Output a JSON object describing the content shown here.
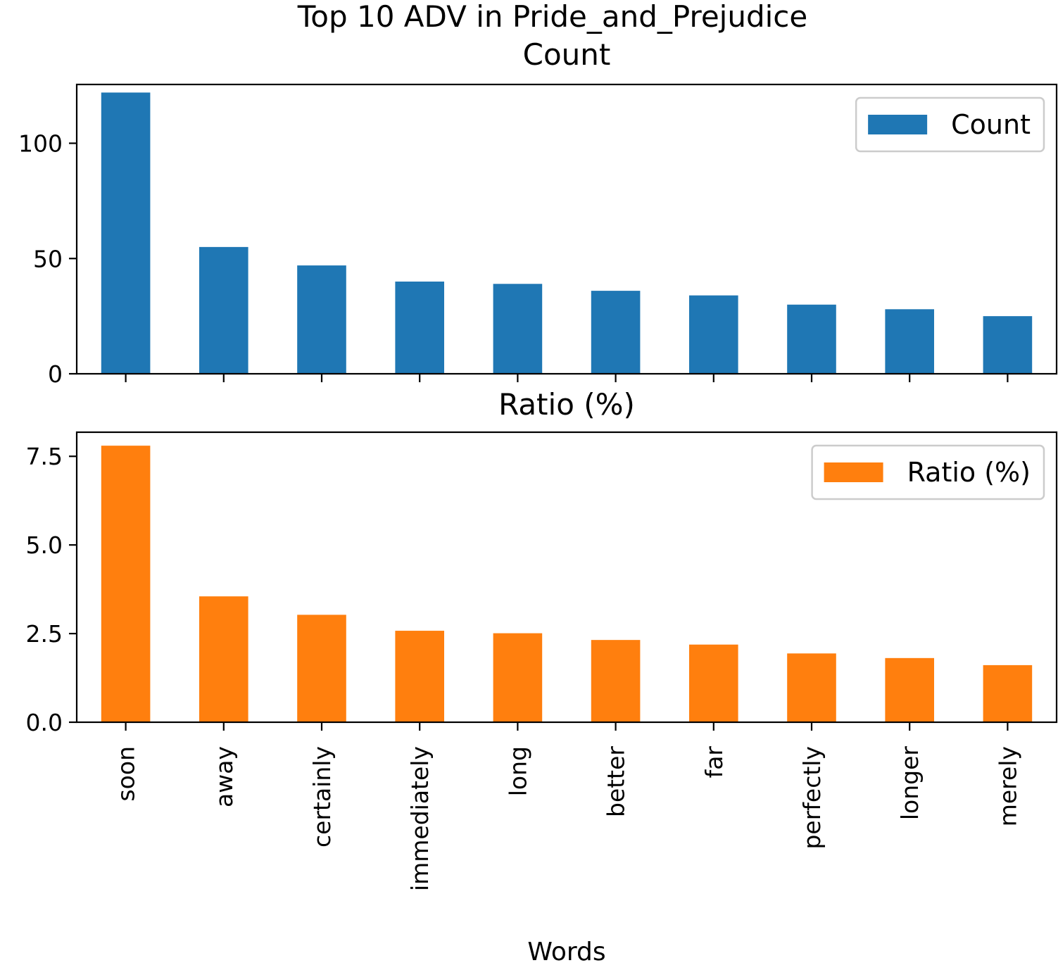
{
  "figure": {
    "suptitle": "Top 10 ADV in Pride_and_Prejudice",
    "xlabel": "Words"
  },
  "colors": {
    "count": "#1f77b4",
    "ratio": "#ff7f0e",
    "legend_border": "#cccccc"
  },
  "chart_data": [
    {
      "type": "bar",
      "title": "Count",
      "categories": [
        "soon",
        "away",
        "certainly",
        "immediately",
        "long",
        "better",
        "far",
        "perfectly",
        "longer",
        "merely"
      ],
      "series": [
        {
          "name": "Count",
          "values": [
            122,
            55,
            47,
            40,
            39,
            36,
            34,
            30,
            28,
            25
          ]
        }
      ],
      "ylim": [
        0,
        125.5
      ],
      "yticks": [
        0,
        50,
        100
      ],
      "ytick_labels": [
        "0",
        "50",
        "100"
      ],
      "xtick_labels_visible": false,
      "legend_position": "top-right",
      "grid": false
    },
    {
      "type": "bar",
      "title": "Ratio (%)",
      "categories": [
        "soon",
        "away",
        "certainly",
        "immediately",
        "long",
        "better",
        "far",
        "perfectly",
        "longer",
        "merely"
      ],
      "series": [
        {
          "name": "Ratio (%)",
          "values": [
            7.8,
            3.55,
            3.03,
            2.58,
            2.51,
            2.32,
            2.19,
            1.94,
            1.81,
            1.61
          ]
        }
      ],
      "ylim": [
        0,
        8.18
      ],
      "yticks": [
        0,
        2.5,
        5,
        7.5
      ],
      "ytick_labels": [
        "0.0",
        "2.5",
        "5.0",
        "7.5"
      ],
      "xlabel": "Words",
      "xtick_labels_visible": true,
      "legend_position": "top-right",
      "grid": false
    }
  ]
}
